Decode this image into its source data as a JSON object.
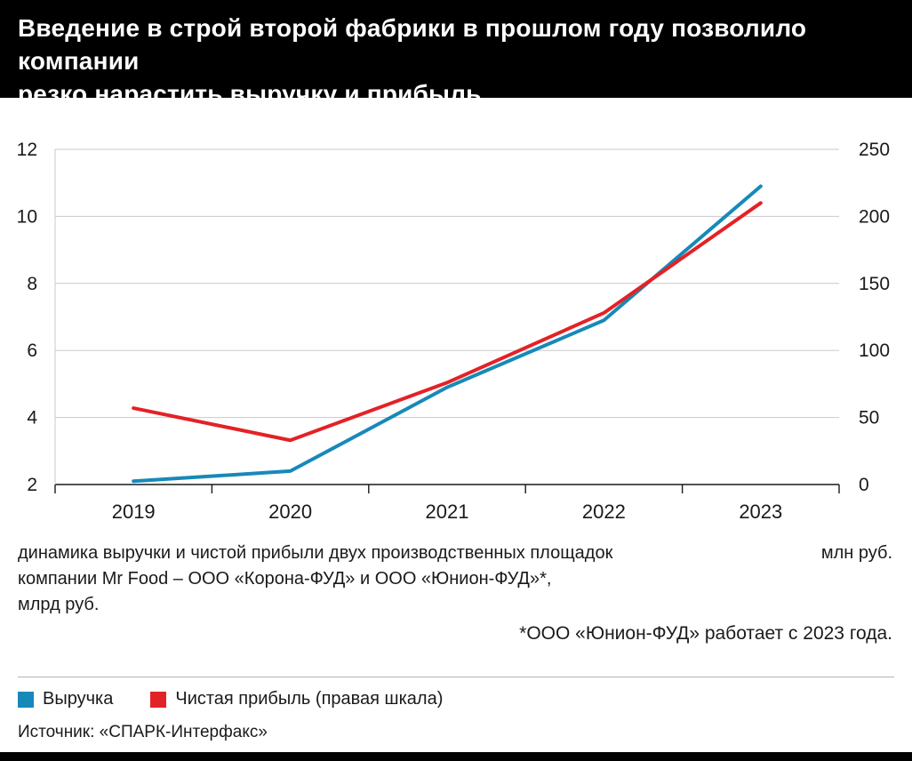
{
  "header": {
    "line1": "Введение в строй второй фабрики в прошлом году позволило компании",
    "line2": "резко нарастить выручку и прибыль"
  },
  "caption": {
    "line1": "динамика выручки и чистой прибыли двух производственных площадок",
    "line2": "компании Mr Food – ООО «Корона-ФУД» и ООО «Юнион-ФУД»*,",
    "line3": "млрд руб.",
    "unit_right": "млн руб.",
    "footnote": "*ООО «Юнион-ФУД» работает с 2023 года."
  },
  "legend": {
    "items": [
      {
        "label": "Выручка",
        "color": "#1789b8"
      },
      {
        "label": "Чистая прибыль (правая шкала)",
        "color": "#e32226"
      }
    ]
  },
  "source": "Источник: «СПАРК-Интерфакс»",
  "colors": {
    "revenue_line": "#1789b8",
    "profit_line": "#e32226",
    "grid": "#c9c9c9",
    "axis": "#1a1a1a",
    "header_bg": "#000000"
  },
  "chart_data": {
    "type": "line",
    "categories": [
      "2019",
      "2020",
      "2021",
      "2022",
      "2023"
    ],
    "series": [
      {
        "name": "Выручка",
        "axis": "left",
        "color": "#1789b8",
        "values": [
          2.1,
          2.4,
          4.9,
          6.9,
          10.9
        ]
      },
      {
        "name": "Чистая прибыль (правая шкала)",
        "axis": "right",
        "color": "#e32226",
        "values": [
          57,
          33,
          76,
          128,
          210
        ]
      }
    ],
    "left_axis": {
      "min": 2,
      "max": 12,
      "ticks": [
        12,
        10,
        8,
        6,
        4,
        2
      ],
      "unit": "млрд руб."
    },
    "right_axis": {
      "min": 0,
      "max": 250,
      "ticks": [
        250,
        200,
        150,
        100,
        50,
        0
      ],
      "unit": "млн руб."
    },
    "grid": true,
    "legend_position": "bottom"
  }
}
